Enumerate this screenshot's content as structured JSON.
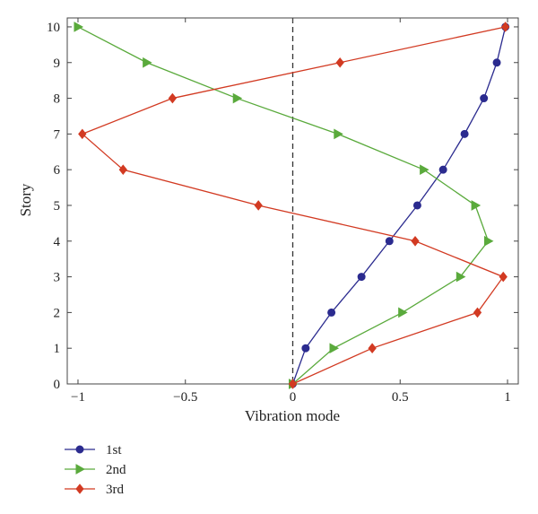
{
  "chart_data": {
    "type": "line",
    "xlabel": "Vibration mode",
    "ylabel": "Story",
    "xlim": [
      -1.05,
      1.05
    ],
    "ylim": [
      0,
      10.25
    ],
    "xticks": [
      -1,
      -0.5,
      0,
      0.5,
      1
    ],
    "xtick_labels": [
      "−1",
      "−0.5",
      "0",
      "0.5",
      "1"
    ],
    "yticks": [
      0,
      1,
      2,
      3,
      4,
      5,
      6,
      7,
      8,
      9,
      10
    ],
    "ytick_labels": [
      "0",
      "1",
      "2",
      "3",
      "4",
      "5",
      "6",
      "7",
      "8",
      "9",
      "10"
    ],
    "reference_line": {
      "x": 0,
      "style": "dashed",
      "color": "#333333"
    },
    "legend_position": "below-left",
    "series": [
      {
        "name": "1st",
        "color": "#2b2b8f",
        "marker": "circle",
        "x": [
          0,
          0.06,
          0.18,
          0.32,
          0.45,
          0.58,
          0.7,
          0.8,
          0.89,
          0.95,
          0.99
        ],
        "y": [
          0,
          1,
          2,
          3,
          4,
          5,
          6,
          7,
          8,
          9,
          10
        ]
      },
      {
        "name": "2nd",
        "color": "#5aaa3c",
        "marker": "triangle-right",
        "x": [
          0,
          0.19,
          0.51,
          0.78,
          0.91,
          0.85,
          0.61,
          0.21,
          -0.26,
          -0.68,
          -1.0
        ],
        "y": [
          0,
          1,
          2,
          3,
          4,
          5,
          6,
          7,
          8,
          9,
          10
        ]
      },
      {
        "name": "3rd",
        "color": "#d23a22",
        "marker": "diamond",
        "x": [
          0,
          0.37,
          0.86,
          0.98,
          0.57,
          -0.16,
          -0.79,
          -0.98,
          -0.56,
          0.22,
          0.99
        ],
        "y": [
          0,
          1,
          2,
          3,
          4,
          5,
          6,
          7,
          8,
          9,
          10
        ]
      }
    ]
  }
}
